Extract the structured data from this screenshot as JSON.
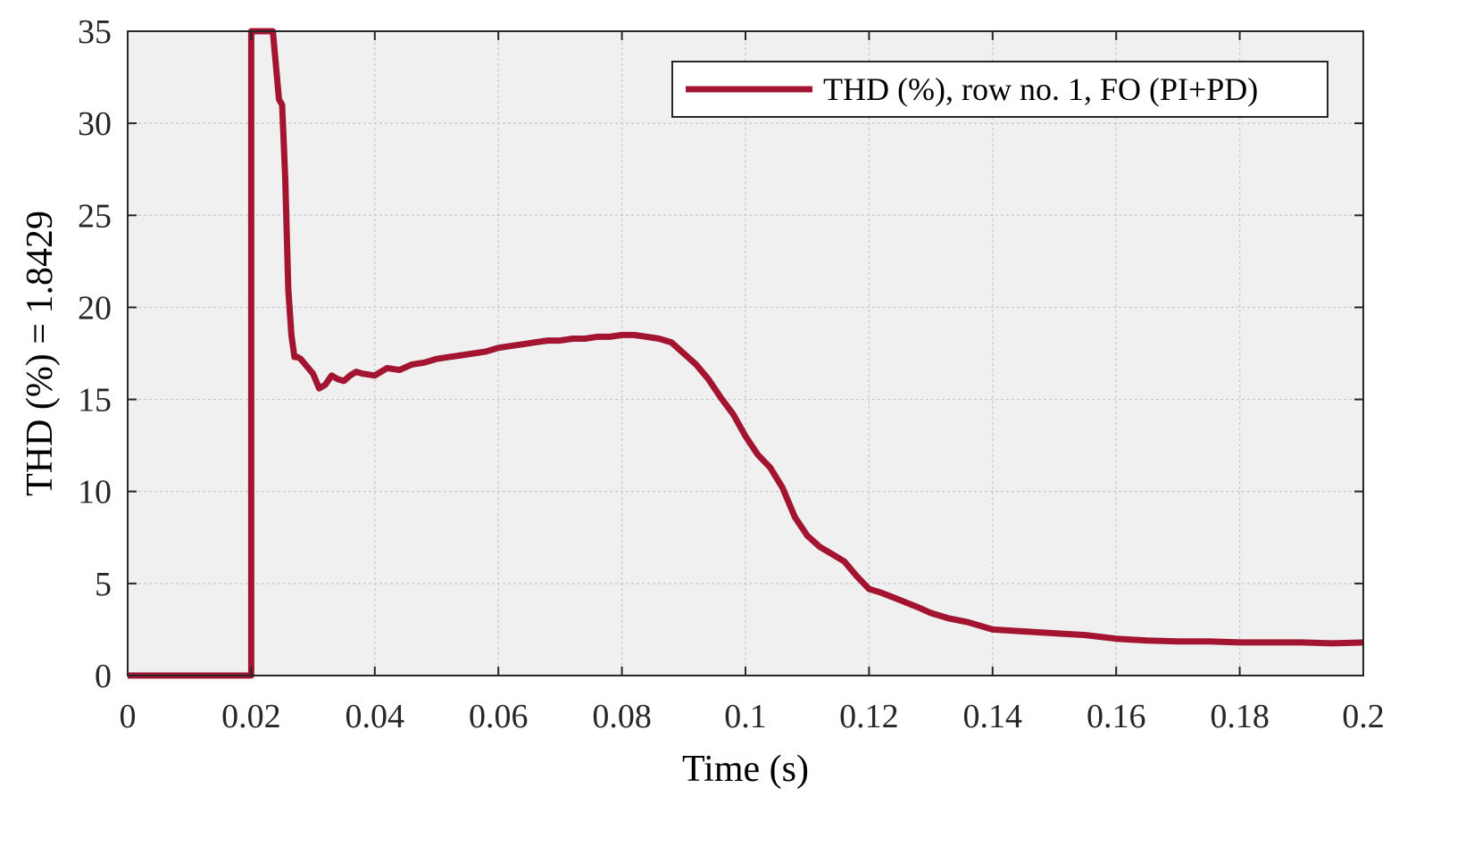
{
  "chart_data": {
    "type": "line",
    "title": "",
    "xlabel": "Time (s)",
    "ylabel": "THD (%) = 1.8429",
    "xlim": [
      0,
      0.2
    ],
    "ylim": [
      0,
      35
    ],
    "xticks": [
      0,
      0.02,
      0.04,
      0.06,
      0.08,
      0.1,
      0.12,
      0.14,
      0.16,
      0.18,
      0.2
    ],
    "xtick_labels": [
      "0",
      "0.02",
      "0.04",
      "0.06",
      "0.08",
      "0.1",
      "0.12",
      "0.14",
      "0.16",
      "0.18",
      "0.2"
    ],
    "yticks": [
      0,
      5,
      10,
      15,
      20,
      25,
      30,
      35
    ],
    "ytick_labels": [
      "0",
      "5",
      "10",
      "15",
      "20",
      "25",
      "30",
      "35"
    ],
    "grid": true,
    "legend_position": "top-right",
    "colors": {
      "series": "#a2142f",
      "axes_background": "#f0f0f0",
      "grid": "#c8c8c8"
    },
    "series": [
      {
        "name": "THD (%), row no. 1, FO (PI+PD)",
        "x": [
          0,
          0.02,
          0.02,
          0.0235,
          0.0245,
          0.025,
          0.0255,
          0.026,
          0.0265,
          0.027,
          0.0275,
          0.028,
          0.03,
          0.031,
          0.032,
          0.033,
          0.034,
          0.035,
          0.036,
          0.037,
          0.038,
          0.04,
          0.042,
          0.044,
          0.046,
          0.048,
          0.05,
          0.052,
          0.054,
          0.056,
          0.058,
          0.06,
          0.062,
          0.064,
          0.066,
          0.068,
          0.07,
          0.072,
          0.074,
          0.076,
          0.078,
          0.08,
          0.082,
          0.084,
          0.086,
          0.088,
          0.09,
          0.092,
          0.094,
          0.096,
          0.098,
          0.1,
          0.102,
          0.104,
          0.106,
          0.108,
          0.11,
          0.112,
          0.114,
          0.116,
          0.118,
          0.12,
          0.122,
          0.125,
          0.128,
          0.13,
          0.133,
          0.136,
          0.14,
          0.145,
          0.15,
          0.155,
          0.16,
          0.165,
          0.17,
          0.175,
          0.18,
          0.185,
          0.19,
          0.195,
          0.2
        ],
        "y": [
          0,
          0,
          35,
          35,
          31.3,
          31,
          27,
          21,
          18.5,
          17.3,
          17.3,
          17.2,
          16.4,
          15.6,
          15.8,
          16.3,
          16.1,
          16.0,
          16.3,
          16.5,
          16.4,
          16.3,
          16.7,
          16.6,
          16.9,
          17.0,
          17.2,
          17.3,
          17.4,
          17.5,
          17.6,
          17.8,
          17.9,
          18.0,
          18.1,
          18.2,
          18.2,
          18.3,
          18.3,
          18.4,
          18.4,
          18.5,
          18.5,
          18.4,
          18.3,
          18.1,
          17.5,
          16.9,
          16.1,
          15.1,
          14.2,
          13.0,
          12.0,
          11.3,
          10.2,
          8.6,
          7.6,
          7.0,
          6.6,
          6.2,
          5.4,
          4.7,
          4.5,
          4.1,
          3.7,
          3.4,
          3.1,
          2.9,
          2.5,
          2.4,
          2.3,
          2.2,
          2.0,
          1.9,
          1.85,
          1.85,
          1.8,
          1.8,
          1.8,
          1.75,
          1.8
        ]
      }
    ]
  }
}
